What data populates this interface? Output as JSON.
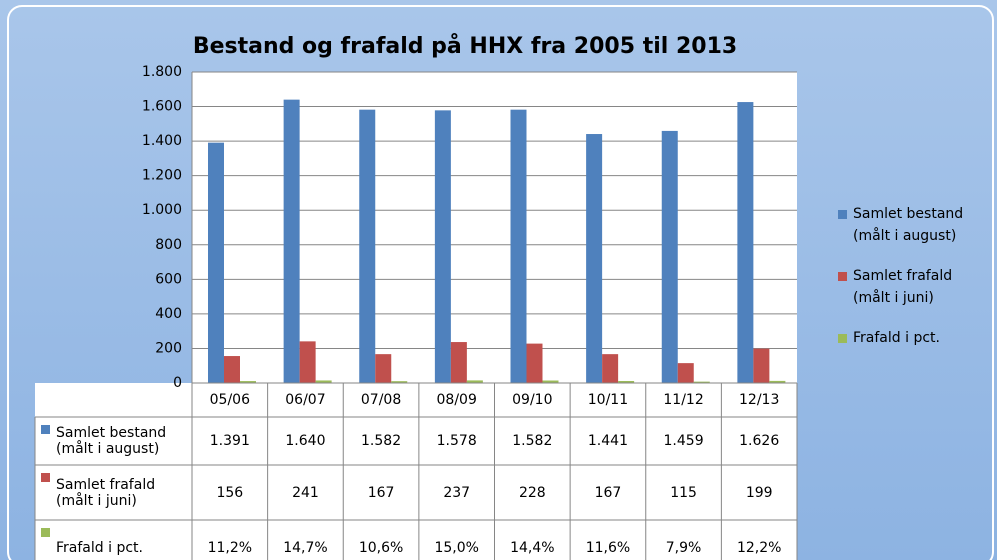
{
  "chart_data": {
    "type": "bar",
    "title": "Bestand og frafald på HHX fra 2005 til 2013",
    "categories": [
      "05/06",
      "06/07",
      "07/08",
      "08/09",
      "09/10",
      "10/11",
      "11/12",
      "12/13"
    ],
    "series": [
      {
        "name": "Samlet bestand (målt i august)",
        "color": "#4f81bd",
        "values": [
          1391,
          1640,
          1582,
          1578,
          1582,
          1441,
          1459,
          1626
        ],
        "value_labels": [
          "1.391",
          "1.640",
          "1.582",
          "1.578",
          "1.582",
          "1.441",
          "1.459",
          "1.626"
        ]
      },
      {
        "name": "Samlet frafald (målt i juni)",
        "color": "#c0504d",
        "values": [
          156,
          241,
          167,
          237,
          228,
          167,
          115,
          199
        ]
      },
      {
        "name": "Frafald i pct.",
        "color": "#9bbb59",
        "values": [
          11.2,
          14.7,
          10.6,
          15.0,
          14.4,
          11.6,
          7.9,
          12.2
        ],
        "value_labels": [
          "11,2%",
          "14,7%",
          "10,6%",
          "15,0%",
          "14,4%",
          "11,6%",
          "7,9%",
          "12,2%"
        ]
      }
    ],
    "ylim": [
      0,
      1800
    ],
    "yticks": [
      0,
      200,
      400,
      600,
      800,
      {
        "value": 1000,
        "label": "1.000"
      },
      {
        "value": 1200,
        "label": "1.200"
      },
      {
        "value": 1400,
        "label": "1.400"
      },
      {
        "value": 1600,
        "label": "1.600"
      },
      {
        "value": 1800,
        "label": "1.800"
      }
    ],
    "grid": true,
    "legend": "right",
    "data_table": true
  }
}
